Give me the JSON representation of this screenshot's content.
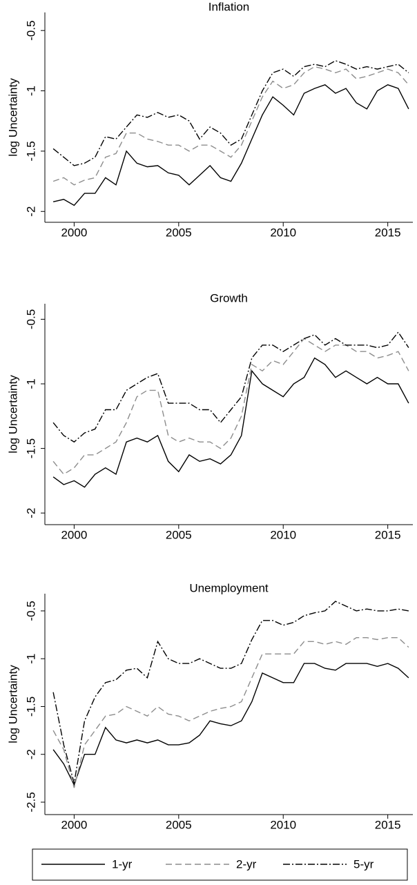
{
  "chart_data": [
    {
      "type": "line",
      "title": "Inflation",
      "ylabel": "log Uncertainty",
      "x": [
        1999,
        1999.5,
        2000,
        2000.5,
        2001,
        2001.5,
        2002,
        2002.5,
        2003,
        2003.5,
        2004,
        2004.5,
        2005,
        2005.5,
        2006,
        2006.5,
        2007,
        2007.5,
        2008,
        2008.5,
        2009,
        2009.5,
        2010,
        2010.5,
        2011,
        2011.5,
        2012,
        2012.5,
        2013,
        2013.5,
        2014,
        2014.5,
        2015,
        2015.5,
        2016
      ],
      "xlim": [
        1998.6,
        2016.2
      ],
      "xticks": [
        2000,
        2005,
        2010,
        2015
      ],
      "ylim": [
        -2.09,
        -0.35
      ],
      "yticks": [
        -2,
        -1.5,
        -1,
        -0.5
      ],
      "series": [
        {
          "values": [
            -1.92,
            -1.9,
            -1.95,
            -1.85,
            -1.85,
            -1.72,
            -1.78,
            -1.5,
            -1.6,
            -1.63,
            -1.62,
            -1.68,
            -1.7,
            -1.78,
            -1.7,
            -1.62,
            -1.72,
            -1.75,
            -1.6,
            -1.4,
            -1.2,
            -1.05,
            -1.12,
            -1.2,
            -1.02,
            -0.98,
            -0.95,
            -1.02,
            -0.98,
            -1.1,
            -1.15,
            -1.0,
            -0.95,
            -0.98,
            -1.15
          ]
        },
        {
          "values": [
            -1.75,
            -1.72,
            -1.78,
            -1.74,
            -1.72,
            -1.55,
            -1.52,
            -1.35,
            -1.35,
            -1.4,
            -1.42,
            -1.45,
            -1.45,
            -1.5,
            -1.45,
            -1.45,
            -1.5,
            -1.55,
            -1.45,
            -1.25,
            -1.05,
            -0.92,
            -0.98,
            -0.95,
            -0.85,
            -0.8,
            -0.82,
            -0.85,
            -0.82,
            -0.9,
            -0.88,
            -0.85,
            -0.82,
            -0.85,
            -0.95
          ]
        },
        {
          "values": [
            -1.48,
            -1.55,
            -1.62,
            -1.6,
            -1.55,
            -1.38,
            -1.4,
            -1.3,
            -1.2,
            -1.22,
            -1.18,
            -1.22,
            -1.2,
            -1.25,
            -1.4,
            -1.3,
            -1.35,
            -1.45,
            -1.4,
            -1.2,
            -1.0,
            -0.85,
            -0.82,
            -0.88,
            -0.8,
            -0.78,
            -0.8,
            -0.75,
            -0.78,
            -0.82,
            -0.8,
            -0.82,
            -0.8,
            -0.78,
            -0.85
          ]
        }
      ]
    },
    {
      "type": "line",
      "title": "Growth",
      "ylabel": "log Uncertainty",
      "x": [
        1999,
        1999.5,
        2000,
        2000.5,
        2001,
        2001.5,
        2002,
        2002.5,
        2003,
        2003.5,
        2004,
        2004.5,
        2005,
        2005.5,
        2006,
        2006.5,
        2007,
        2007.5,
        2008,
        2008.5,
        2009,
        2009.5,
        2010,
        2010.5,
        2011,
        2011.5,
        2012,
        2012.5,
        2013,
        2013.5,
        2014,
        2014.5,
        2015,
        2015.5,
        2016
      ],
      "xlim": [
        1998.6,
        2016.2
      ],
      "xticks": [
        2000,
        2005,
        2010,
        2015
      ],
      "ylim": [
        -2.09,
        -0.38
      ],
      "yticks": [
        -2,
        -1.5,
        -1,
        -0.5
      ],
      "series": [
        {
          "values": [
            -1.72,
            -1.78,
            -1.75,
            -1.8,
            -1.7,
            -1.65,
            -1.7,
            -1.45,
            -1.42,
            -1.45,
            -1.4,
            -1.6,
            -1.68,
            -1.55,
            -1.6,
            -1.58,
            -1.62,
            -1.55,
            -1.4,
            -0.9,
            -1.0,
            -1.05,
            -1.1,
            -1.0,
            -0.95,
            -0.8,
            -0.85,
            -0.95,
            -0.9,
            -0.95,
            -1.0,
            -0.95,
            -1.0,
            -1.0,
            -1.15
          ]
        },
        {
          "values": [
            -1.6,
            -1.7,
            -1.65,
            -1.55,
            -1.55,
            -1.5,
            -1.45,
            -1.3,
            -1.1,
            -1.05,
            -1.05,
            -1.4,
            -1.45,
            -1.42,
            -1.45,
            -1.45,
            -1.5,
            -1.42,
            -1.25,
            -0.85,
            -0.9,
            -0.82,
            -0.85,
            -0.75,
            -0.65,
            -0.7,
            -0.75,
            -0.7,
            -0.7,
            -0.75,
            -0.75,
            -0.8,
            -0.78,
            -0.75,
            -0.9
          ]
        },
        {
          "values": [
            -1.3,
            -1.4,
            -1.45,
            -1.38,
            -1.35,
            -1.2,
            -1.2,
            -1.05,
            -1.0,
            -0.95,
            -0.92,
            -1.15,
            -1.15,
            -1.15,
            -1.2,
            -1.2,
            -1.3,
            -1.2,
            -1.1,
            -0.8,
            -0.7,
            -0.7,
            -0.75,
            -0.7,
            -0.65,
            -0.62,
            -0.7,
            -0.65,
            -0.7,
            -0.7,
            -0.7,
            -0.72,
            -0.7,
            -0.6,
            -0.72
          ]
        }
      ]
    },
    {
      "type": "line",
      "title": "Unemployment",
      "ylabel": "log Uncertainty",
      "x": [
        1999,
        1999.5,
        2000,
        2000.5,
        2001,
        2001.5,
        2002,
        2002.5,
        2003,
        2003.5,
        2004,
        2004.5,
        2005,
        2005.5,
        2006,
        2006.5,
        2007,
        2007.5,
        2008,
        2008.5,
        2009,
        2009.5,
        2010,
        2010.5,
        2011,
        2011.5,
        2012,
        2012.5,
        2013,
        2013.5,
        2014,
        2014.5,
        2015,
        2015.5,
        2016
      ],
      "xlim": [
        1998.6,
        2016.2
      ],
      "xticks": [
        2000,
        2005,
        2010,
        2015
      ],
      "ylim": [
        -2.63,
        -0.32
      ],
      "yticks": [
        -2.5,
        -2,
        -1.5,
        -1,
        -0.5
      ],
      "series": [
        {
          "values": [
            -1.95,
            -2.1,
            -2.32,
            -2.0,
            -2.0,
            -1.72,
            -1.85,
            -1.88,
            -1.85,
            -1.88,
            -1.85,
            -1.9,
            -1.9,
            -1.88,
            -1.8,
            -1.65,
            -1.68,
            -1.7,
            -1.65,
            -1.45,
            -1.15,
            -1.2,
            -1.25,
            -1.25,
            -1.05,
            -1.05,
            -1.1,
            -1.12,
            -1.05,
            -1.05,
            -1.05,
            -1.08,
            -1.05,
            -1.1,
            -1.2
          ]
        },
        {
          "values": [
            -1.75,
            -1.95,
            -2.35,
            -1.9,
            -1.75,
            -1.6,
            -1.58,
            -1.5,
            -1.55,
            -1.6,
            -1.5,
            -1.58,
            -1.6,
            -1.65,
            -1.6,
            -1.55,
            -1.52,
            -1.5,
            -1.45,
            -1.2,
            -0.95,
            -0.95,
            -0.95,
            -0.95,
            -0.82,
            -0.82,
            -0.85,
            -0.82,
            -0.85,
            -0.78,
            -0.78,
            -0.8,
            -0.78,
            -0.78,
            -0.88
          ]
        },
        {
          "values": [
            -1.35,
            -1.9,
            -2.3,
            -1.65,
            -1.4,
            -1.25,
            -1.22,
            -1.12,
            -1.1,
            -1.2,
            -0.82,
            -1.0,
            -1.05,
            -1.05,
            -1.0,
            -1.05,
            -1.1,
            -1.1,
            -1.05,
            -0.8,
            -0.6,
            -0.6,
            -0.65,
            -0.62,
            -0.55,
            -0.52,
            -0.5,
            -0.4,
            -0.45,
            -0.5,
            -0.48,
            -0.5,
            -0.5,
            -0.48,
            -0.5
          ]
        }
      ]
    }
  ],
  "legend": {
    "entries": [
      {
        "name": "1-yr",
        "color": "#000000",
        "dash": "none"
      },
      {
        "name": "2-yr",
        "color": "#8c8c8c",
        "dash": "9,5"
      },
      {
        "name": "5-yr",
        "color": "#000000",
        "dash": "10,3,2,3"
      }
    ]
  }
}
